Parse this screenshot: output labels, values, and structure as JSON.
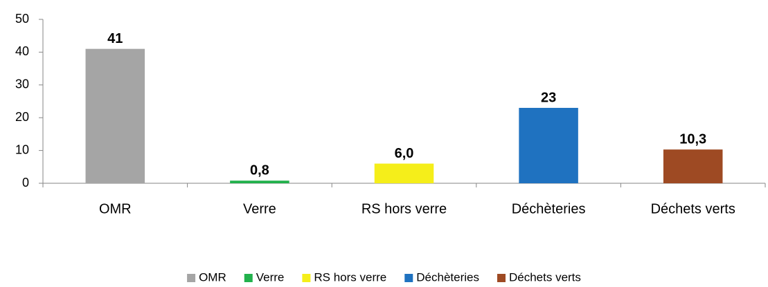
{
  "chart_data": {
    "type": "bar",
    "categories": [
      "OMR",
      "Verre",
      "RS hors verre",
      "Déchèteries",
      "Déchets verts"
    ],
    "values": [
      41,
      0.8,
      6.0,
      23,
      10.3
    ],
    "value_labels": [
      "41",
      "0,8",
      "6,0",
      "23",
      "10,3"
    ],
    "colors": [
      "#a5a5a5",
      "#22b14c",
      "#f5ee1a",
      "#1f72c0",
      "#9e4a23"
    ],
    "ylim": [
      0,
      50
    ],
    "yticks": [
      0,
      10,
      20,
      30,
      40,
      50
    ],
    "grid": false,
    "legend": "bottom"
  }
}
